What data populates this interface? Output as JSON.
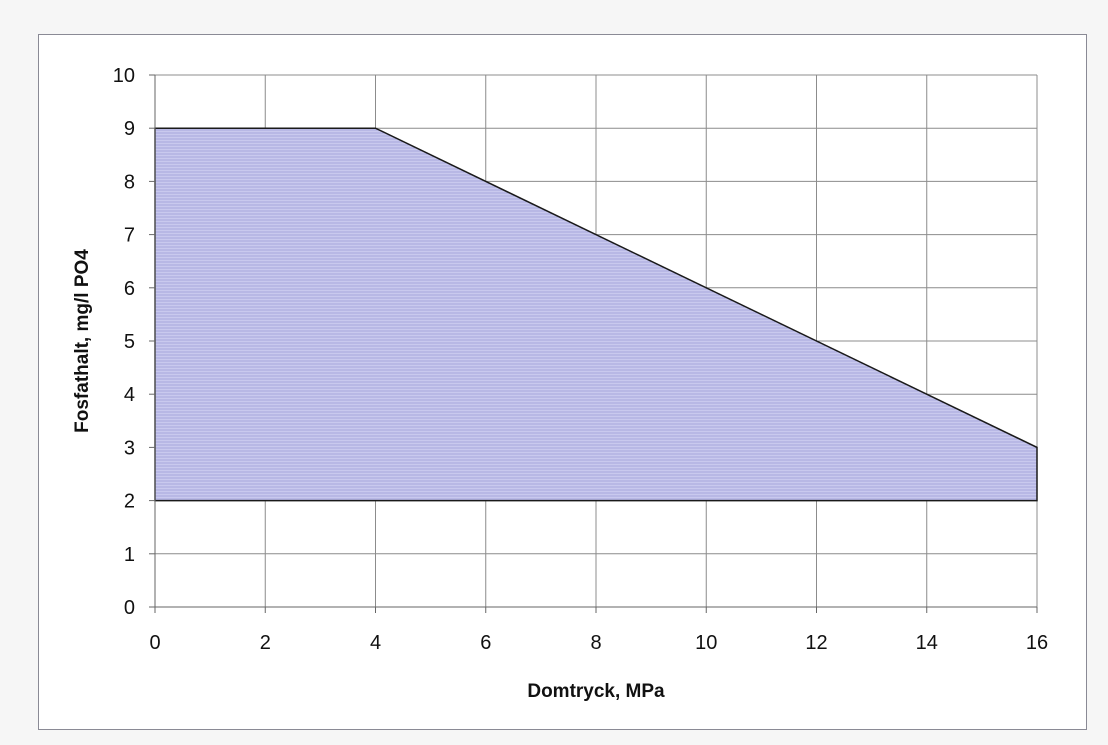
{
  "chart_data": {
    "type": "area",
    "title": "",
    "xlabel": "Domtryck,  MPa",
    "ylabel": "Fosfathalt,  mg/l PO4",
    "xlim": [
      0,
      16
    ],
    "ylim": [
      0,
      10
    ],
    "x_ticks": [
      0,
      2,
      4,
      6,
      8,
      10,
      12,
      14,
      16
    ],
    "y_ticks": [
      0,
      1,
      2,
      3,
      4,
      5,
      6,
      7,
      8,
      9,
      10
    ],
    "grid": true,
    "legend": "none",
    "region": {
      "upper": {
        "x": [
          0,
          4,
          16
        ],
        "y": [
          9,
          9,
          3
        ]
      },
      "lower": {
        "x": [
          0,
          16
        ],
        "y": [
          2,
          2
        ]
      }
    },
    "colors": {
      "fill": "#c9c9ee",
      "hatch": "#a6a6dc",
      "outline": "#1a1a1a",
      "grid": "#8c8c8c"
    }
  }
}
